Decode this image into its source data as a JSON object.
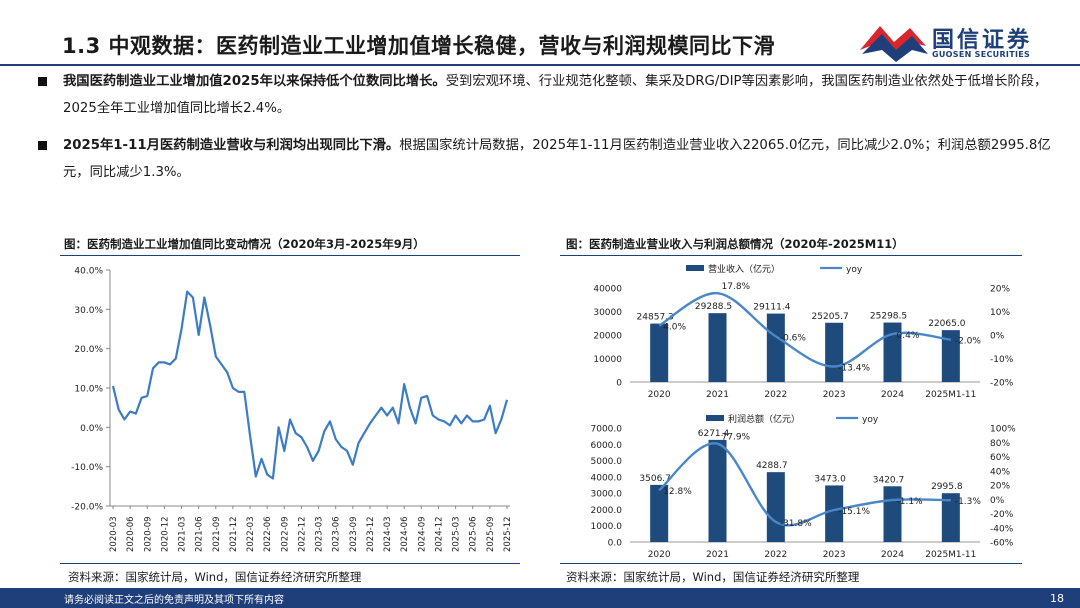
{
  "header": {
    "title": "1.3 中观数据：医药制造业工业增加值增长稳健，营收与利润规模同比下滑",
    "logo_cn": "国信证券",
    "logo_en": "GUOSEN SECURITIES",
    "brand_color": "#1e3f7a",
    "logo_accent": "#d7262e"
  },
  "bullets": [
    {
      "bold": "我国医药制造业工业增加值2025年以来保持低个位数同比增长。",
      "text": "受到宏观环境、行业规范化整顿、集采及DRG/DIP等因素影响，我国医药制造业依然处于低增长阶段，2025全年工业增加值同比增长2.4%。"
    },
    {
      "bold": "2025年1-11月医药制造业营收与利润均出现同比下滑。",
      "text": "根据国家统计局数据，2025年1-11月医药制造业营业收入22065.0亿元，同比减少2.0%；利润总额2995.8亿元，同比减少1.3%。"
    }
  ],
  "left_figure": {
    "title": "图：医药制造业工业增加值同比变动情况（2020年3月-2025年9月）",
    "source": "资料来源：国家统计局，Wind，国信证券经济研究所整理"
  },
  "right_figure": {
    "title": "图：医药制造业营业收入与利润总额情况（2020年-2025M11）",
    "source": "资料来源：国家统计局，Wind，国信证券经济研究所整理"
  },
  "footer": {
    "disclaimer": "请务必阅读正文之后的免责声明及其项下所有内容",
    "page": "18"
  },
  "chart_data": [
    {
      "type": "line",
      "title": "图：医药制造业工业增加值同比变动情况（2020年3月-2025年9月）",
      "y_format": "percent_1dp",
      "ylim": [
        -20,
        40
      ],
      "yticks": [
        -20,
        -10,
        0,
        10,
        20,
        30,
        40
      ],
      "x_tick_labels": [
        "2020-03",
        "2020-06",
        "2020-09",
        "2020-12",
        "2021-03",
        "2021-06",
        "2021-09",
        "2021-12",
        "2022-03",
        "2022-06",
        "2022-09",
        "2022-12",
        "2023-03",
        "2023-06",
        "2023-09",
        "2023-12",
        "2024-03",
        "2024-06",
        "2024-09",
        "2024-12",
        "2025-03",
        "2025-06",
        "2025-09",
        "2025-12"
      ],
      "color": "#3b7cc4",
      "grid": false,
      "series": [
        {
          "x": [
            "2020-03",
            "2020-04",
            "2020-05",
            "2020-06",
            "2020-07",
            "2020-08",
            "2020-09",
            "2020-10",
            "2020-11",
            "2020-12",
            "2021-01",
            "2021-02",
            "2021-03",
            "2021-04",
            "2021-05",
            "2021-06",
            "2021-07",
            "2021-08",
            "2021-09",
            "2021-10",
            "2021-11",
            "2021-12",
            "2022-01",
            "2022-02",
            "2022-03",
            "2022-04",
            "2022-05",
            "2022-06",
            "2022-07",
            "2022-08",
            "2022-09",
            "2022-10",
            "2022-11",
            "2022-12",
            "2023-01",
            "2023-02",
            "2023-03",
            "2023-04",
            "2023-05",
            "2023-06",
            "2023-07",
            "2023-08",
            "2023-09",
            "2023-10",
            "2023-11",
            "2023-12",
            "2024-01",
            "2024-02",
            "2024-03",
            "2024-04",
            "2024-05",
            "2024-06",
            "2024-07",
            "2024-08",
            "2024-09",
            "2024-10",
            "2024-11",
            "2024-12",
            "2025-01",
            "2025-02",
            "2025-03",
            "2025-04",
            "2025-05",
            "2025-06",
            "2025-07",
            "2025-08",
            "2025-09",
            "2025-10",
            "2025-11",
            "2025-12"
          ],
          "values": [
            10.5,
            4.5,
            2,
            4,
            3.5,
            7.5,
            8,
            15,
            16.5,
            16.5,
            16,
            17.5,
            25,
            34.5,
            33,
            23.5,
            33,
            26,
            18,
            16,
            14,
            10,
            9,
            9,
            -2,
            -12.5,
            -8,
            -12,
            -13,
            0,
            -6,
            2,
            -1.5,
            -2.5,
            -5,
            -8.5,
            -6,
            -1,
            1.5,
            -3,
            -5,
            -6,
            -9.5,
            -4,
            -1.5,
            1,
            3,
            5,
            3,
            5,
            1,
            11,
            5,
            1,
            7.5,
            8,
            3,
            2,
            1.5,
            0.5,
            3,
            1,
            3,
            1.5,
            1.5,
            2,
            5.5,
            -1.5,
            2,
            7
          ]
        }
      ]
    },
    {
      "type": "bar",
      "categories": [
        "2020",
        "2021",
        "2022",
        "2023",
        "2024",
        "2025M1-11"
      ],
      "ylim": [
        0,
        40000
      ],
      "yticks": [
        0,
        10000,
        20000,
        30000,
        40000
      ],
      "y2lim": [
        -20,
        20
      ],
      "y2ticks": [
        "-20%",
        "-10%",
        "0%",
        "10%",
        "20%"
      ],
      "legend_position": "top",
      "series": [
        {
          "name": "营业收入（亿元）",
          "type": "bar",
          "color": "#1e4a7c",
          "values": [
            24857.3,
            29288.5,
            29111.4,
            25205.7,
            25298.5,
            22065.0
          ],
          "labels": [
            "24857.3",
            "29288.5",
            "29111.4",
            "25205.7",
            "25298.5",
            "22065.0"
          ]
        },
        {
          "name": "yoy",
          "type": "line",
          "axis": "right",
          "color": "#4a87c8",
          "values": [
            4.0,
            17.8,
            -0.6,
            -13.4,
            0.4,
            -2.0
          ],
          "labels": [
            "4.0%",
            "17.8%",
            "-0.6%",
            "-13.4%",
            "0.4%",
            "-2.0%"
          ]
        }
      ]
    },
    {
      "type": "bar",
      "categories": [
        "2020",
        "2021",
        "2022",
        "2023",
        "2024",
        "2025M1-11"
      ],
      "ylim": [
        0,
        7000
      ],
      "yticks": [
        "0.0",
        "1000.0",
        "2000.0",
        "3000.0",
        "4000.0",
        "5000.0",
        "6000.0",
        "7000.0"
      ],
      "y2lim": [
        -60,
        100
      ],
      "y2ticks": [
        "-60%",
        "-40%",
        "-20%",
        "0%",
        "20%",
        "40%",
        "60%",
        "80%",
        "100%"
      ],
      "legend_position": "top",
      "series": [
        {
          "name": "利润总额（亿元）",
          "type": "bar",
          "color": "#1e4a7c",
          "values": [
            3506.7,
            6271.4,
            4288.7,
            3473.0,
            3420.7,
            2995.8
          ],
          "labels": [
            "3506.7",
            "6271.4",
            "4288.7",
            "3473.0",
            "3420.7",
            "2995.8"
          ]
        },
        {
          "name": "yoy",
          "type": "line",
          "axis": "right",
          "color": "#4a87c8",
          "values": [
            12.8,
            77.9,
            -31.8,
            -15.1,
            -1.1,
            -1.3
          ],
          "labels": [
            "12.8%",
            "77.9%",
            "-31.8%",
            "-15.1%",
            "-1.1%",
            "-1.3%"
          ]
        }
      ]
    }
  ]
}
